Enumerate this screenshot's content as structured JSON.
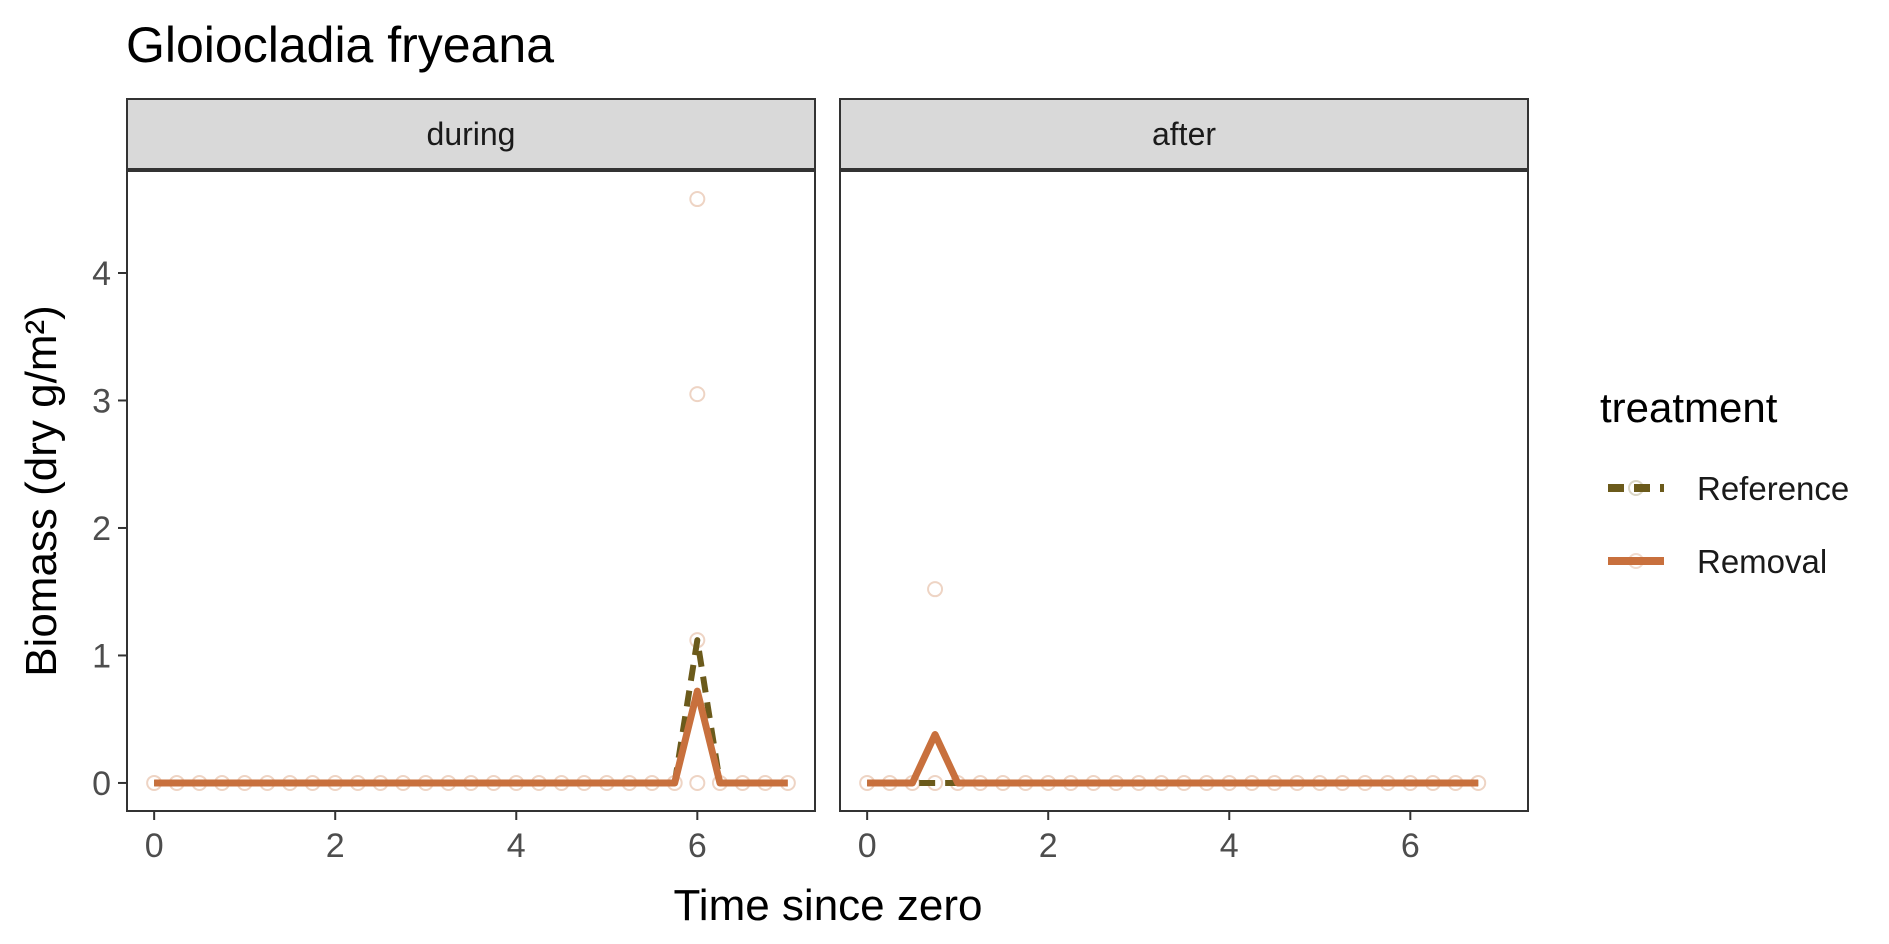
{
  "chart_data": {
    "type": "line",
    "title": "Gloiocladia fryeana",
    "xlabel": "Time since zero",
    "ylabel": "Biomass (dry g/m²)",
    "xlim": [
      -0.3,
      7.3
    ],
    "ylim": [
      -0.22,
      4.8
    ],
    "x_ticks": [
      0,
      2,
      4,
      6
    ],
    "y_ticks": [
      0,
      1,
      2,
      3,
      4
    ],
    "grid": false,
    "legend": {
      "title": "treatment",
      "placement": "right",
      "entries": [
        {
          "label": "Reference",
          "color": "#6b5a1b",
          "dash": "dashed"
        },
        {
          "label": "Removal",
          "color": "#c8703d",
          "dash": "solid"
        }
      ]
    },
    "panels": [
      {
        "label": "during",
        "series": [
          {
            "name": "Reference",
            "color": "#6b5a1b",
            "dash": "dashed",
            "x": [
              0,
              0.25,
              0.5,
              0.75,
              1,
              1.25,
              1.5,
              1.75,
              2,
              2.25,
              2.5,
              2.75,
              3,
              3.25,
              3.5,
              3.75,
              4,
              4.25,
              4.5,
              4.75,
              5,
              5.25,
              5.5,
              5.75,
              6,
              6.25,
              6.5,
              6.75,
              7
            ],
            "y": [
              0,
              0,
              0,
              0,
              0,
              0,
              0,
              0,
              0,
              0,
              0,
              0,
              0,
              0,
              0,
              0,
              0,
              0,
              0,
              0,
              0,
              0,
              0,
              0,
              1.12,
              0,
              0,
              0,
              0
            ]
          },
          {
            "name": "Removal",
            "color": "#c8703d",
            "dash": "solid",
            "x": [
              0,
              0.25,
              0.5,
              0.75,
              1,
              1.25,
              1.5,
              1.75,
              2,
              2.25,
              2.5,
              2.75,
              3,
              3.25,
              3.5,
              3.75,
              4,
              4.25,
              4.5,
              4.75,
              5,
              5.25,
              5.5,
              5.75,
              6,
              6.25,
              6.5,
              6.75,
              7
            ],
            "y": [
              0,
              0,
              0,
              0,
              0,
              0,
              0,
              0,
              0,
              0,
              0,
              0,
              0,
              0,
              0,
              0,
              0,
              0,
              0,
              0,
              0,
              0,
              0,
              0,
              0.72,
              0,
              0,
              0,
              0
            ]
          }
        ],
        "points": {
          "x": [
            0,
            0.25,
            0.5,
            0.75,
            1,
            1.25,
            1.5,
            1.75,
            2,
            2.25,
            2.5,
            2.75,
            3,
            3.25,
            3.5,
            3.75,
            4,
            4.25,
            4.5,
            4.75,
            5,
            5.25,
            5.5,
            5.75,
            6,
            6,
            6,
            6,
            6.25,
            6.5,
            6.75,
            7
          ],
          "y": [
            0,
            0,
            0,
            0,
            0,
            0,
            0,
            0,
            0,
            0,
            0,
            0,
            0,
            0,
            0,
            0,
            0,
            0,
            0,
            0,
            0,
            0,
            0,
            0,
            0,
            1.12,
            3.05,
            4.58,
            0,
            0,
            0,
            0
          ]
        }
      },
      {
        "label": "after",
        "series": [
          {
            "name": "Reference",
            "color": "#6b5a1b",
            "dash": "dashed",
            "x": [
              0,
              0.25,
              0.5,
              0.75,
              1,
              1.25,
              1.5,
              1.75,
              2,
              2.25,
              2.5,
              2.75,
              3,
              3.25,
              3.5,
              3.75,
              4,
              4.25,
              4.5,
              4.75,
              5,
              5.25,
              5.5,
              5.75,
              6,
              6.25,
              6.5,
              6.75
            ],
            "y": [
              0,
              0,
              0,
              0,
              0,
              0,
              0,
              0,
              0,
              0,
              0,
              0,
              0,
              0,
              0,
              0,
              0,
              0,
              0,
              0,
              0,
              0,
              0,
              0,
              0,
              0,
              0,
              0
            ]
          },
          {
            "name": "Removal",
            "color": "#c8703d",
            "dash": "solid",
            "x": [
              0,
              0.25,
              0.5,
              0.75,
              1,
              1.25,
              1.5,
              1.75,
              2,
              2.25,
              2.5,
              2.75,
              3,
              3.25,
              3.5,
              3.75,
              4,
              4.25,
              4.5,
              4.75,
              5,
              5.25,
              5.5,
              5.75,
              6,
              6.25,
              6.5,
              6.75
            ],
            "y": [
              0,
              0,
              0,
              0.38,
              0,
              0,
              0,
              0,
              0,
              0,
              0,
              0,
              0,
              0,
              0,
              0,
              0,
              0,
              0,
              0,
              0,
              0,
              0,
              0,
              0,
              0,
              0,
              0
            ]
          }
        ],
        "points": {
          "x": [
            0,
            0.25,
            0.5,
            0.75,
            0.75,
            1,
            1.25,
            1.5,
            1.75,
            2,
            2.25,
            2.5,
            2.75,
            3,
            3.25,
            3.5,
            3.75,
            4,
            4.25,
            4.5,
            4.75,
            5,
            5.25,
            5.5,
            5.75,
            6,
            6.25,
            6.5,
            6.75
          ],
          "y": [
            0,
            0,
            0,
            0,
            1.52,
            0,
            0,
            0,
            0,
            0,
            0,
            0,
            0,
            0,
            0,
            0,
            0,
            0,
            0,
            0,
            0,
            0,
            0,
            0,
            0,
            0,
            0,
            0,
            0
          ]
        }
      }
    ]
  }
}
